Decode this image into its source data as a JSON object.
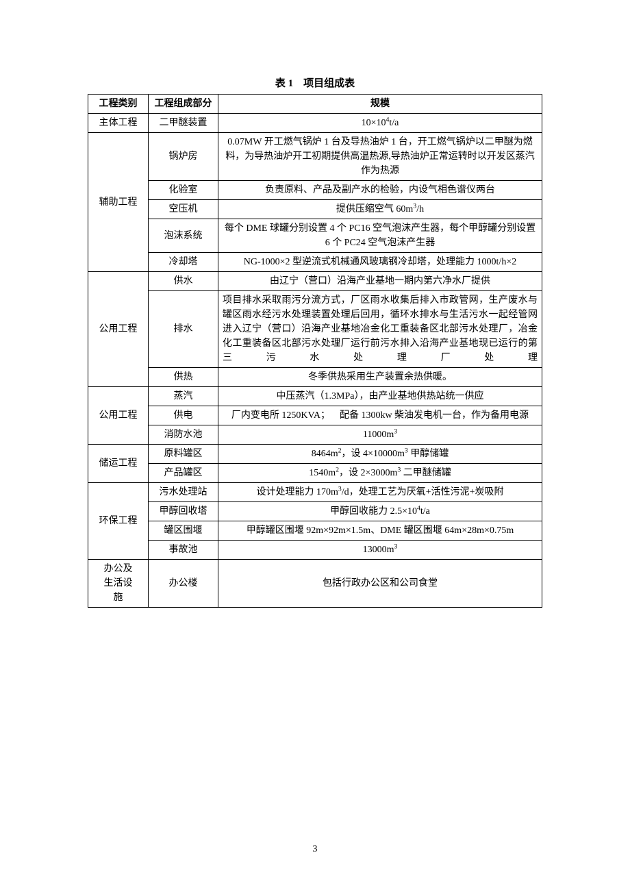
{
  "caption": "表 1 项目组成表",
  "header": {
    "c1": "工程类别",
    "c2": "工程组成部分",
    "c3": "规模"
  },
  "font": {
    "caption_size": 15,
    "body_size": 14,
    "pagenum_size": 14
  },
  "colors": {
    "text": "#000000",
    "border": "#000000",
    "bg": "#ffffff"
  },
  "rows": [
    {
      "cat": "主体工程",
      "catspan": 1,
      "comp": "二甲醚装置",
      "scale": "10×10⁴t/a"
    },
    {
      "cat": "辅助工程",
      "catspan": 5,
      "comp": "锅炉房",
      "scale": "0.07MW 开工燃气锅炉 1 台及导热油炉 1 台，开工燃气锅炉以二甲醚为燃料，为导热油炉开工初期提供高温热源,导热油炉正常运转时以开发区蒸汽作为热源",
      "long": true
    },
    {
      "comp": "化验室",
      "scale": "负责原料、产品及副产水的检验，内设气相色谱仪两台"
    },
    {
      "comp": "空压机",
      "scale": "提供压缩空气 60m³/h"
    },
    {
      "comp": "泡沫系统",
      "scale": "每个 DME 球罐分别设置 4 个 PC16 空气泡沫产生器，每个甲醇罐分别设置 6 个 PC24 空气泡沫产生器",
      "long": true
    },
    {
      "comp": "冷却塔",
      "scale": "NG-1000×2 型逆流式机械通风玻璃钢冷却塔，处理能力 1000t/h×2",
      "long": true
    },
    {
      "cat": "公用工程",
      "catspan": 3,
      "comp": "供水",
      "scale": "由辽宁（营口）沿海产业基地一期内第六净水厂提供"
    },
    {
      "comp": "排水",
      "scale": "项目排水采取雨污分流方式，厂区雨水收集后排入市政管网，生产废水与罐区雨水经污水处理装置处理后回用，循环水排水与生活污水一起经管网进入辽宁（营口）沿海产业基地冶金化工重装备区北部污水处理厂，冶金化工重装备区北部污水处理厂运行前污水排入沿海产业基地现已运行的第三污水处理厂处理",
      "long": true,
      "justify": true
    },
    {
      "comp": "供热",
      "scale": "冬季供热采用生产装置余热供暖。"
    },
    {
      "cat": "公用工程",
      "catspan": 3,
      "comp": "蒸汽",
      "scale": "中压蒸汽（1.3MPa），由产业基地供热站统一供应"
    },
    {
      "comp": "供电",
      "scale": "厂内变电所 1250KVA； 配备 1300kw 柴油发电机一台，作为备用电源",
      "long": true
    },
    {
      "comp": "消防水池",
      "scale": "11000m³"
    },
    {
      "cat": "储运工程",
      "catspan": 2,
      "comp": "原料罐区",
      "scale": "8464m²，设 4×10000m³ 甲醇储罐"
    },
    {
      "comp": "产品罐区",
      "scale": "1540m²，设 2×3000m³ 二甲醚储罐"
    },
    {
      "cat": "环保工程",
      "catspan": 4,
      "comp": "污水处理站",
      "scale": "设计处理能力 170m³/d，处理工艺为厌氧+活性污泥+炭吸附"
    },
    {
      "comp": "甲醇回收塔",
      "scale": "甲醇回收能力 2.5×10⁴t/a"
    },
    {
      "comp": "罐区围堰",
      "scale": "甲醇罐区围堰 92m×92m×1.5m、DME 罐区围堰 64m×28m×0.75m"
    },
    {
      "comp": "事故池",
      "scale": "13000m³"
    },
    {
      "cat": "办公及生活设施",
      "catspan": 1,
      "comp": "办公楼",
      "scale": "包括行政办公区和公司食堂",
      "catwrap": true
    }
  ],
  "page_number": "3"
}
